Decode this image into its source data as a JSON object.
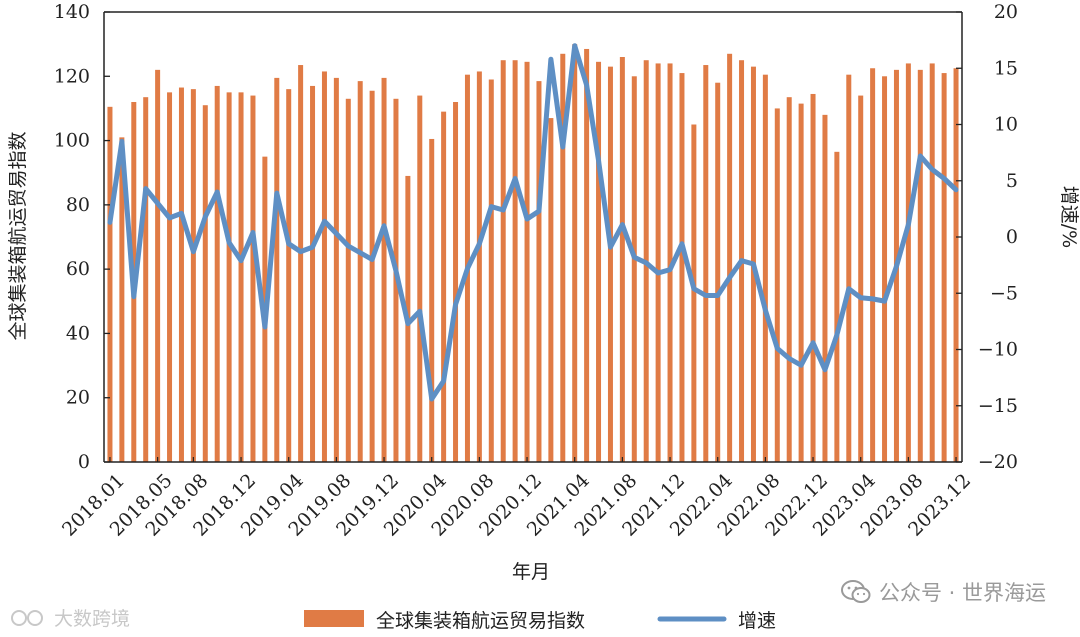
{
  "chart_data": {
    "type": "bar+line",
    "xlabel": "年月",
    "ylabel_left": "全球集装箱航运贸易指数",
    "ylabel_right": "增速/%",
    "ylim_left": [
      0,
      140
    ],
    "ylim_right": [
      -20,
      20
    ],
    "yticks_left": [
      "0",
      "20",
      "40",
      "60",
      "80",
      "100",
      "120",
      "140"
    ],
    "yticks_right": [
      "−20",
      "−15",
      "−10",
      "−5",
      "0",
      "5",
      "10",
      "15",
      "20"
    ],
    "x_tick_labels": [
      "2018.01",
      "2018.05",
      "2018.08",
      "2018.12",
      "2019.04",
      "2019.08",
      "2019.12",
      "2020.04",
      "2020.08",
      "2020.12",
      "2021.04",
      "2021.08",
      "2021.12",
      "2022.04",
      "2022.08",
      "2022.12",
      "2023.04",
      "2023.08",
      "2023.12"
    ],
    "legend_position": "bottom-center",
    "grid": false,
    "colors": {
      "bars": "#e07b45",
      "line": "#5e8fc4"
    },
    "series": [
      {
        "name": "全球集装箱航运贸易指数",
        "kind": "bar",
        "axis": "left",
        "values": [
          110.5,
          101,
          112,
          113.5,
          122,
          115,
          116.5,
          116,
          111,
          117,
          115,
          115,
          114,
          95,
          119.5,
          116,
          123.5,
          117,
          121.5,
          119.5,
          113,
          118.5,
          115.5,
          119.5,
          113,
          89,
          114,
          100.5,
          109,
          112,
          120.5,
          121.5,
          119,
          125,
          125,
          124.5,
          118.5,
          107,
          127,
          130,
          128.5,
          124.5,
          123,
          126,
          120,
          125,
          124,
          124,
          121,
          105,
          123.5,
          118,
          127,
          125,
          123,
          120.5,
          110,
          113.5,
          111.5,
          114.5,
          108,
          96.5,
          120.5,
          114,
          122.5,
          120,
          122,
          124,
          122,
          124,
          121,
          122.5
        ]
      },
      {
        "name": "增速",
        "kind": "line",
        "axis": "right",
        "values": [
          1.3,
          8.5,
          -5.3,
          4.3,
          3,
          1.7,
          2.1,
          -1.3,
          1.8,
          4,
          -0.5,
          -2.1,
          0.4,
          -8,
          3.9,
          -0.6,
          -1.3,
          -0.9,
          1.4,
          0.3,
          -0.8,
          -1.4,
          -2,
          1,
          -3,
          -7.7,
          -6.6,
          -14.4,
          -12.8,
          -6,
          -2.8,
          -0.6,
          2.7,
          2.4,
          5.2,
          1.6,
          2.3,
          15.8,
          8,
          17,
          13.5,
          6.8,
          -0.9,
          1.1,
          -1.8,
          -2.3,
          -3.2,
          -2.9,
          -0.6,
          -4.6,
          -5.2,
          -5.2,
          -3.6,
          -2.1,
          -2.4,
          -6.5,
          -9.9,
          -10.8,
          -11.4,
          -9.4,
          -11.8,
          -8.7,
          -4.6,
          -5.4,
          -5.5,
          -5.7,
          -2.6,
          1.1,
          7.2,
          6,
          5.2,
          4.2
        ]
      }
    ]
  },
  "watermarks": {
    "right_text": "公众号 · 世界海运",
    "right_icon": "wechat-icon",
    "left_text": "大数跨境",
    "left_icon": "brand-icon"
  }
}
